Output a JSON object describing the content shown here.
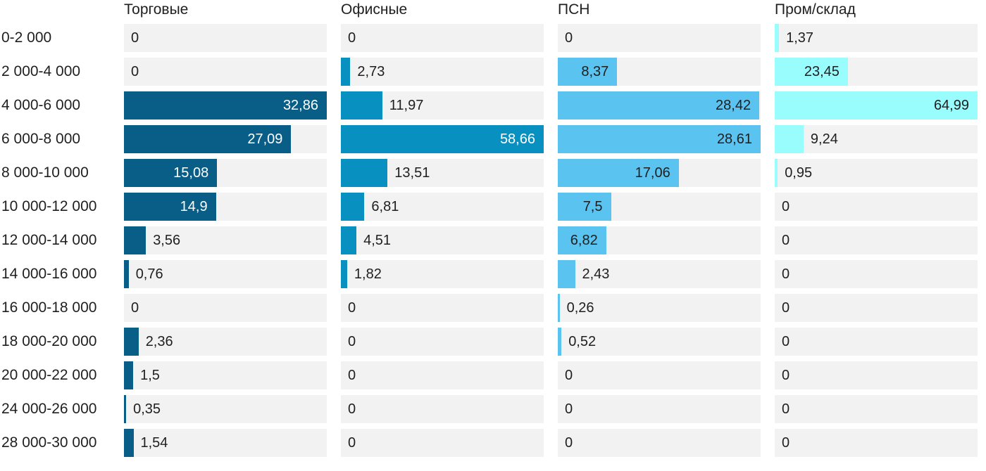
{
  "chart_data": {
    "type": "bar",
    "orientation": "horizontal",
    "legend_position": "column-headers-top",
    "grid": false,
    "column_scaling": "each column scaled to its own max value",
    "track_color": "#f2f2f2",
    "text_color": "#1f1f1f",
    "background": "#ffffff",
    "value_decimal_separator": ",",
    "categories": [
      "0-2 000",
      "2 000-4 000",
      "4 000-6 000",
      "6 000-8 000",
      "8 000-10 000",
      "10 000-12 000",
      "12 000-14 000",
      "14 000-16 000",
      "16 000-18 000",
      "18 000-20 000",
      "20 000-22 000",
      "24 000-26 000",
      "28 000-30 000"
    ],
    "series": [
      {
        "name": "Торговые",
        "color": "#085e87",
        "inside_label_color": "#ffffff",
        "values": [
          0,
          0,
          32.86,
          27.09,
          15.08,
          14.9,
          3.56,
          0.76,
          0,
          2.36,
          1.5,
          0.35,
          1.54
        ],
        "labels": [
          "0",
          "0",
          "32,86",
          "27,09",
          "15,08",
          "14,9",
          "3,56",
          "0,76",
          "0",
          "2,36",
          "1,5",
          "0,35",
          "1,54"
        ]
      },
      {
        "name": "Офисные",
        "color": "#0890c0",
        "inside_label_color": "#ffffff",
        "values": [
          0,
          2.73,
          11.97,
          58.66,
          13.51,
          6.81,
          4.51,
          1.82,
          0,
          0,
          0,
          0,
          0
        ],
        "labels": [
          "0",
          "2,73",
          "11,97",
          "58,66",
          "13,51",
          "6,81",
          "4,51",
          "1,82",
          "0",
          "0",
          "0",
          "0",
          "0"
        ]
      },
      {
        "name": "ПСН",
        "color": "#5ac3f0",
        "inside_label_color": "#1f1f1f",
        "values": [
          0,
          8.37,
          28.42,
          28.61,
          17.06,
          7.5,
          6.82,
          2.43,
          0.26,
          0.52,
          0,
          0,
          0
        ],
        "labels": [
          "0",
          "8,37",
          "28,42",
          "28,61",
          "17,06",
          "7,5",
          "6,82",
          "2,43",
          "0,26",
          "0,52",
          "0",
          "0",
          "0"
        ]
      },
      {
        "name": "Пром/склад",
        "color": "#9afdfd",
        "inside_label_color": "#1f1f1f",
        "values": [
          1.37,
          23.45,
          64.99,
          9.24,
          0.95,
          0,
          0,
          0,
          0,
          0,
          0,
          0,
          0
        ],
        "labels": [
          "1,37",
          "23,45",
          "64,99",
          "9,24",
          "0,95",
          "0",
          "0",
          "0",
          "0",
          "0",
          "0",
          "0",
          "0"
        ]
      }
    ]
  }
}
